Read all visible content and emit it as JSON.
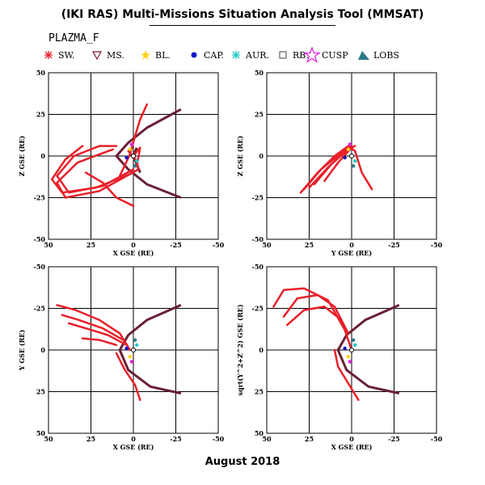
{
  "title": "(IKI RAS) Multi-Missions Situation Analysis Tool (MMSAT)",
  "subtitle": "PLAZMA_F",
  "footer": "August 2018",
  "legend": [
    {
      "label": "SW.",
      "icon": "sw-asterisk-icon",
      "color": "#e8202a"
    },
    {
      "label": "MS.",
      "icon": "ms-triangle-icon",
      "color": "#7a1a2a"
    },
    {
      "label": "BL.",
      "icon": "bl-star-icon",
      "color": "#ffd21e"
    },
    {
      "label": "CAP.",
      "icon": "cap-dot-icon",
      "color": "#1414c8"
    },
    {
      "label": "AUR.",
      "icon": "aur-asterisk-icon",
      "color": "#1ec8c8"
    },
    {
      "label": "RB.",
      "icon": "rb-square-icon",
      "color": "#444444"
    },
    {
      "label": "CUSP",
      "icon": "cusp-star-icon",
      "color": "#e020e0"
    },
    {
      "label": "LOBS",
      "icon": "lobs-triangle-icon",
      "color": "#2a7a8a"
    }
  ],
  "colors": {
    "orbit": "#e8202a",
    "magnetopause": "#6a2035",
    "bowshock": "#6a2035"
  },
  "chart_data": [
    {
      "type": "line",
      "xlabel": "X GSE (RE)",
      "ylabel": "Z GSE (RE)",
      "xlim": [
        50,
        -50
      ],
      "ylim": [
        -50,
        50
      ],
      "xticks": [
        "50",
        "25",
        "0",
        "-25",
        "-50"
      ],
      "yticks": [
        "-50",
        "-25",
        "0",
        "25",
        "50"
      ],
      "grid": true,
      "series": [
        {
          "points": [
            [
              12,
              4
            ],
            [
              20,
              1
            ],
            [
              33,
              -4
            ],
            [
              45,
              -16
            ],
            [
              40,
              -25
            ],
            [
              20,
              -21
            ],
            [
              -3,
              -8
            ],
            [
              -2,
              -3
            ],
            [
              3,
              3
            ]
          ]
        },
        {
          "points": [
            [
              30,
              6
            ],
            [
              40,
              -2
            ],
            [
              48,
              -14
            ],
            [
              42,
              -22
            ],
            [
              22,
              -19
            ],
            [
              0,
              -10
            ]
          ]
        },
        {
          "points": [
            [
              8,
              -12
            ],
            [
              2,
              1
            ],
            [
              -1,
              12
            ],
            [
              -4,
              22
            ],
            [
              -8,
              31
            ]
          ]
        },
        {
          "points": [
            [
              28,
              -10
            ],
            [
              18,
              -16
            ],
            [
              10,
              -25
            ],
            [
              0,
              -30
            ]
          ]
        },
        {
          "points": [
            [
              10,
              6
            ],
            [
              20,
              6
            ],
            [
              35,
              0
            ],
            [
              45,
              -12
            ],
            [
              38,
              -22
            ],
            [
              18,
              -18
            ],
            [
              0,
              -8
            ]
          ]
        },
        {
          "points": [
            [
              0,
              0
            ],
            [
              -4,
              5
            ],
            [
              -2,
              -6
            ]
          ]
        }
      ],
      "boundaries": [
        {
          "points": [
            [
              -28,
              28
            ],
            [
              -8,
              17
            ],
            [
              3,
              8
            ],
            [
              10,
              0
            ],
            [
              3,
              -8
            ],
            [
              -8,
              -17
            ],
            [
              -28,
              -25
            ]
          ]
        },
        {
          "points": [
            [
              -2,
              5
            ],
            [
              0,
              0
            ],
            [
              -2,
              -5
            ],
            [
              -4,
              -10
            ]
          ]
        }
      ]
    },
    {
      "type": "line",
      "xlabel": "Y GSE (RE)",
      "ylabel": "Z GSE (RE)",
      "xlim": [
        50,
        -50
      ],
      "ylim": [
        -50,
        50
      ],
      "xticks": [
        "50",
        "25",
        "0",
        "-25",
        "-50"
      ],
      "yticks": [
        "-50",
        "-25",
        "0",
        "25",
        "50"
      ],
      "grid": true,
      "series": [
        {
          "points": [
            [
              30,
              -22
            ],
            [
              20,
              -10
            ],
            [
              10,
              0
            ],
            [
              2,
              6
            ],
            [
              -2,
              3
            ],
            [
              -6,
              -10
            ],
            [
              -12,
              -20
            ]
          ]
        },
        {
          "points": [
            [
              28,
              -20
            ],
            [
              18,
              -8
            ],
            [
              6,
              2
            ],
            [
              0,
              6
            ]
          ]
        },
        {
          "points": [
            [
              25,
              -19
            ],
            [
              14,
              -7
            ],
            [
              4,
              3
            ],
            [
              -2,
              6
            ]
          ]
        },
        {
          "points": [
            [
              22,
              -17
            ],
            [
              12,
              -5
            ],
            [
              2,
              4
            ]
          ]
        },
        {
          "points": [
            [
              16,
              -15
            ],
            [
              8,
              -4
            ],
            [
              0,
              5
            ]
          ]
        }
      ],
      "boundaries": []
    },
    {
      "type": "line",
      "xlabel": "X GSE (RE)",
      "ylabel": "Y GSE (RE)",
      "xlim": [
        50,
        -50
      ],
      "ylim": [
        50,
        -50
      ],
      "xticks": [
        "50",
        "25",
        "0",
        "-25",
        "-50"
      ],
      "yticks": [
        "-50",
        "-25",
        "0",
        "25",
        "50"
      ],
      "grid": true,
      "series": [
        {
          "points": [
            [
              45,
              -27
            ],
            [
              34,
              -24
            ],
            [
              20,
              -18
            ],
            [
              8,
              -10
            ],
            [
              2,
              0
            ]
          ]
        },
        {
          "points": [
            [
              42,
              -21
            ],
            [
              32,
              -18
            ],
            [
              18,
              -13
            ],
            [
              6,
              -6
            ]
          ]
        },
        {
          "points": [
            [
              38,
              -16
            ],
            [
              28,
              -13
            ],
            [
              15,
              -9
            ],
            [
              4,
              -3
            ]
          ]
        },
        {
          "points": [
            [
              30,
              -7
            ],
            [
              20,
              -6
            ],
            [
              10,
              -3
            ]
          ]
        },
        {
          "points": [
            [
              10,
              2
            ],
            [
              5,
              12
            ],
            [
              -1,
              21
            ],
            [
              -4,
              30
            ]
          ]
        }
      ],
      "boundaries": [
        {
          "points": [
            [
              -28,
              -27
            ],
            [
              -8,
              -18
            ],
            [
              3,
              -9
            ],
            [
              8,
              0
            ],
            [
              3,
              12
            ],
            [
              -10,
              22
            ],
            [
              -28,
              26
            ]
          ]
        }
      ]
    },
    {
      "type": "line",
      "xlabel": "X GSE (RE)",
      "ylabel": "sqrt(Y^2+Z^2) GSE (RE)",
      "xlim": [
        50,
        -50
      ],
      "ylim": [
        50,
        -50
      ],
      "xticks": [
        "50",
        "25",
        "0",
        "-25",
        "-50"
      ],
      "yticks": [
        "-50",
        "-25",
        "0",
        "25",
        "50"
      ],
      "grid": true,
      "series": [
        {
          "points": [
            [
              46,
              -26
            ],
            [
              40,
              -36
            ],
            [
              28,
              -37
            ],
            [
              14,
              -30
            ],
            [
              4,
              -12
            ],
            [
              0,
              0
            ]
          ]
        },
        {
          "points": [
            [
              40,
              -20
            ],
            [
              32,
              -31
            ],
            [
              20,
              -33
            ],
            [
              10,
              -26
            ],
            [
              2,
              -10
            ]
          ]
        },
        {
          "points": [
            [
              38,
              -15
            ],
            [
              28,
              -24
            ],
            [
              16,
              -26
            ],
            [
              6,
              -18
            ]
          ]
        },
        {
          "points": [
            [
              10,
              0
            ],
            [
              8,
              10
            ],
            [
              2,
              20
            ],
            [
              -4,
              30
            ]
          ]
        }
      ],
      "boundaries": [
        {
          "points": [
            [
              -28,
              -27
            ],
            [
              -8,
              -18
            ],
            [
              3,
              -9
            ],
            [
              8,
              0
            ],
            [
              3,
              12
            ],
            [
              -10,
              22
            ],
            [
              -28,
              26
            ]
          ]
        }
      ]
    }
  ]
}
